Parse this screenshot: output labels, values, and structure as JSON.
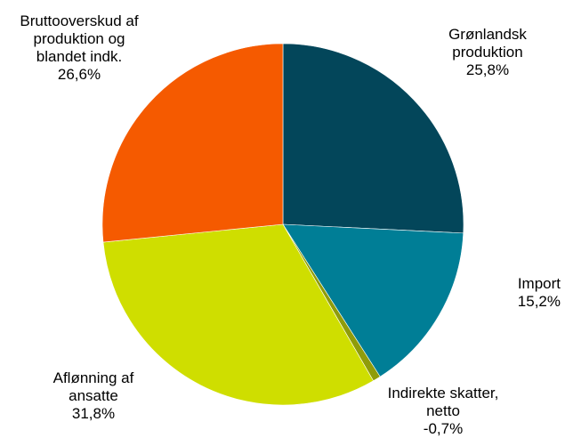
{
  "chart_data": {
    "type": "pie",
    "title": "",
    "slices": [
      {
        "name_lines": [
          "Grønlandsk",
          "produktion"
        ],
        "value_label": "25,8%",
        "value": 25.8,
        "color": "#03465a"
      },
      {
        "name_lines": [
          "Import"
        ],
        "value_label": "15,2%",
        "value": 15.2,
        "color": "#007e96"
      },
      {
        "name_lines": [
          "Indirekte skatter,",
          "netto"
        ],
        "value_label": "-0,7%",
        "value": 0.7,
        "color": "#8f9c0a"
      },
      {
        "name_lines": [
          "Aflønning af",
          "ansatte"
        ],
        "value_label": "31,8%",
        "value": 31.8,
        "color": "#cfde00"
      },
      {
        "name_lines": [
          "Bruttooverskud af",
          "produktion og",
          "blandet indk."
        ],
        "value_label": "26,6%",
        "value": 26.6,
        "color": "#f55a00"
      }
    ]
  }
}
